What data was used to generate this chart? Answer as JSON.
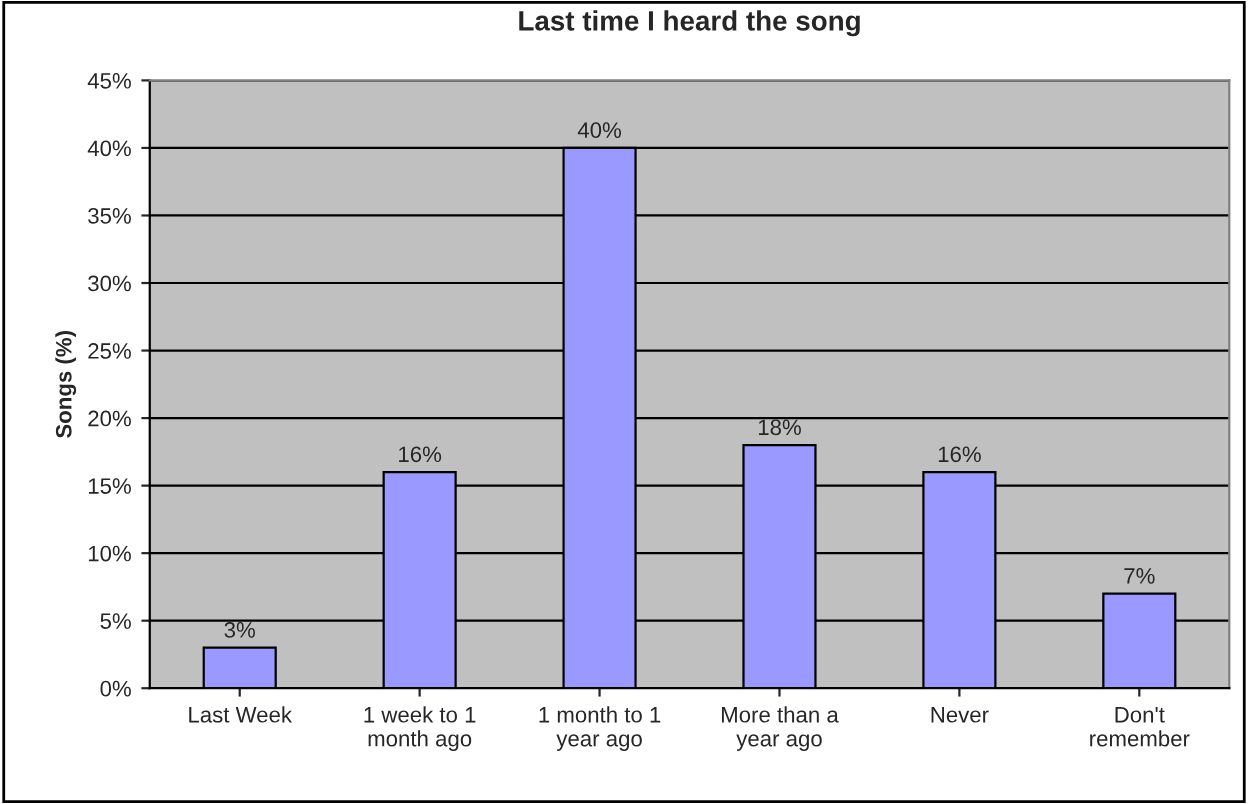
{
  "chart_data": {
    "type": "bar",
    "title": "Last time I heard the song",
    "ylabel": "Songs (%)",
    "categories": [
      "Last Week",
      "1 week to 1\nmonth ago",
      "1 month to 1\nyear ago",
      "More than a\nyear ago",
      "Never",
      "Don't\nremember"
    ],
    "values": [
      3,
      16,
      40,
      18,
      16,
      7
    ],
    "value_labels": [
      "3%",
      "16%",
      "40%",
      "18%",
      "16%",
      "7%"
    ],
    "color": "#9999ff",
    "ylim": [
      0,
      45
    ],
    "yticks": [
      {
        "value": 0,
        "label": "0%"
      },
      {
        "value": 5,
        "label": "5%"
      },
      {
        "value": 10,
        "label": "10%"
      },
      {
        "value": 15,
        "label": "15%"
      },
      {
        "value": 20,
        "label": "20%"
      },
      {
        "value": 25,
        "label": "25%"
      },
      {
        "value": 30,
        "label": "30%"
      },
      {
        "value": 35,
        "label": "35%"
      },
      {
        "value": 40,
        "label": "40%"
      },
      {
        "value": 45,
        "label": "45%"
      }
    ],
    "grid": "y",
    "legend": false
  }
}
